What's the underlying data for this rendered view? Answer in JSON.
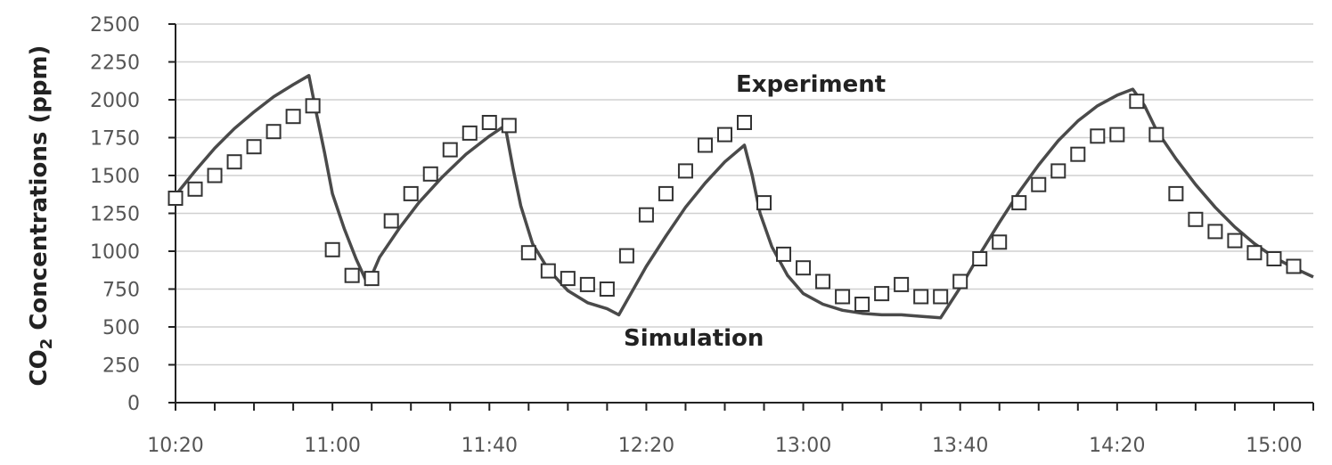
{
  "chart_data": {
    "type": "line",
    "ylabel_main": "CO",
    "ylabel_sub": "2",
    "ylabel_rest": " Concentrations (ppm)",
    "ylim": [
      0,
      2500
    ],
    "yticks": [
      0,
      250,
      500,
      750,
      1000,
      1250,
      1500,
      1750,
      2000,
      2250,
      2500
    ],
    "x_tick_labels": [
      "10:20",
      "11:00",
      "11:40",
      "12:20",
      "13:00",
      "13:40",
      "14:20",
      "15:00"
    ],
    "x_tick_minutes": [
      620,
      660,
      700,
      740,
      780,
      820,
      860,
      900
    ],
    "xlim_minutes": [
      620,
      910
    ],
    "grid": "horizontal",
    "annotations": {
      "experiment": "Experiment",
      "simulation": "Simulation"
    },
    "series": [
      {
        "marker": "open-square",
        "points": [
          [
            620,
            1350
          ],
          [
            625,
            1410
          ],
          [
            630,
            1500
          ],
          [
            635,
            1590
          ],
          [
            640,
            1690
          ],
          [
            645,
            1790
          ],
          [
            650,
            1890
          ],
          [
            655,
            1960
          ],
          [
            660,
            1010
          ],
          [
            665,
            840
          ],
          [
            670,
            820
          ],
          [
            675,
            1200
          ],
          [
            680,
            1380
          ],
          [
            685,
            1510
          ],
          [
            690,
            1670
          ],
          [
            695,
            1780
          ],
          [
            700,
            1850
          ],
          [
            705,
            1830
          ],
          [
            710,
            990
          ],
          [
            715,
            870
          ],
          [
            720,
            820
          ],
          [
            725,
            780
          ],
          [
            730,
            750
          ],
          [
            735,
            970
          ],
          [
            740,
            1240
          ],
          [
            745,
            1380
          ],
          [
            750,
            1530
          ],
          [
            755,
            1700
          ],
          [
            760,
            1770
          ],
          [
            765,
            1850
          ],
          [
            770,
            1320
          ],
          [
            775,
            980
          ],
          [
            780,
            890
          ],
          [
            785,
            800
          ],
          [
            790,
            700
          ],
          [
            795,
            650
          ],
          [
            800,
            720
          ],
          [
            805,
            780
          ],
          [
            810,
            700
          ],
          [
            815,
            700
          ],
          [
            820,
            800
          ],
          [
            825,
            950
          ],
          [
            830,
            1060
          ],
          [
            835,
            1320
          ],
          [
            840,
            1440
          ],
          [
            845,
            1530
          ],
          [
            850,
            1640
          ],
          [
            855,
            1760
          ],
          [
            860,
            1770
          ],
          [
            865,
            1990
          ],
          [
            870,
            1770
          ],
          [
            875,
            1380
          ],
          [
            880,
            1210
          ],
          [
            885,
            1130
          ],
          [
            890,
            1070
          ],
          [
            895,
            990
          ],
          [
            900,
            950
          ],
          [
            905,
            900
          ]
        ]
      },
      {
        "marker": "line",
        "points": [
          [
            620,
            1370
          ],
          [
            625,
            1530
          ],
          [
            630,
            1680
          ],
          [
            635,
            1810
          ],
          [
            640,
            1920
          ],
          [
            645,
            2020
          ],
          [
            650,
            2100
          ],
          [
            654,
            2160
          ],
          [
            656,
            1900
          ],
          [
            658,
            1650
          ],
          [
            660,
            1380
          ],
          [
            663,
            1150
          ],
          [
            666,
            950
          ],
          [
            669,
            780
          ],
          [
            672,
            960
          ],
          [
            677,
            1150
          ],
          [
            682,
            1320
          ],
          [
            688,
            1490
          ],
          [
            694,
            1640
          ],
          [
            700,
            1760
          ],
          [
            704,
            1830
          ],
          [
            706,
            1550
          ],
          [
            708,
            1300
          ],
          [
            711,
            1050
          ],
          [
            715,
            880
          ],
          [
            720,
            740
          ],
          [
            725,
            660
          ],
          [
            730,
            620
          ],
          [
            733,
            580
          ],
          [
            740,
            900
          ],
          [
            745,
            1100
          ],
          [
            750,
            1290
          ],
          [
            755,
            1450
          ],
          [
            760,
            1590
          ],
          [
            765,
            1700
          ],
          [
            767,
            1500
          ],
          [
            769,
            1250
          ],
          [
            772,
            1030
          ],
          [
            776,
            840
          ],
          [
            780,
            720
          ],
          [
            785,
            650
          ],
          [
            790,
            610
          ],
          [
            795,
            590
          ],
          [
            800,
            580
          ],
          [
            805,
            580
          ],
          [
            810,
            570
          ],
          [
            815,
            560
          ],
          [
            820,
            760
          ],
          [
            825,
            980
          ],
          [
            830,
            1190
          ],
          [
            835,
            1390
          ],
          [
            840,
            1570
          ],
          [
            845,
            1730
          ],
          [
            850,
            1860
          ],
          [
            855,
            1960
          ],
          [
            860,
            2030
          ],
          [
            864,
            2070
          ],
          [
            867,
            1960
          ],
          [
            870,
            1800
          ],
          [
            875,
            1610
          ],
          [
            880,
            1440
          ],
          [
            885,
            1290
          ],
          [
            890,
            1160
          ],
          [
            895,
            1050
          ],
          [
            900,
            960
          ],
          [
            905,
            890
          ],
          [
            910,
            830
          ]
        ]
      }
    ]
  }
}
